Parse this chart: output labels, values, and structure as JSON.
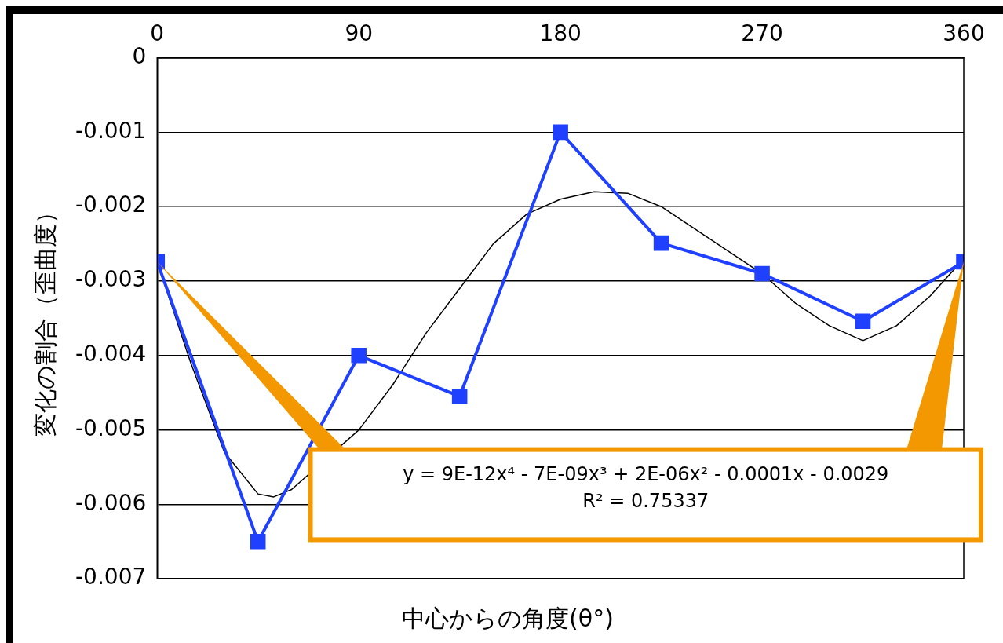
{
  "chart_data": {
    "type": "line",
    "xlabel": "中心からの角度(θ°)",
    "ylabel": "変化の割合（歪曲度）",
    "x": [
      0,
      45,
      90,
      135,
      180,
      225,
      270,
      315,
      360
    ],
    "xlim": [
      0,
      360
    ],
    "xticks": [
      0,
      90,
      180,
      270,
      360
    ],
    "ylim": [
      -0.007,
      0
    ],
    "yticks": [
      -0.007,
      -0.006,
      -0.005,
      -0.004,
      -0.003,
      -0.002,
      -0.001,
      0
    ],
    "grid": "y",
    "legend": false,
    "marker": "square",
    "line_style": "solid",
    "series": [
      {
        "color": "#2040ff",
        "values": [
          -0.00274,
          -0.0065,
          -0.004,
          -0.00455,
          -0.001,
          -0.00249,
          -0.0029,
          -0.00354,
          -0.00274
        ]
      },
      {
        "type": "line",
        "color": "#000000",
        "marker": "none",
        "x": [
          0,
          15,
          30,
          45,
          52,
          60,
          75,
          90,
          105,
          120,
          135,
          150,
          165,
          180,
          195,
          210,
          225,
          240,
          255,
          270,
          285,
          300,
          315,
          330,
          345,
          360
        ],
        "values": [
          -0.00274,
          -0.0041,
          -0.0053,
          -0.00586,
          -0.0059,
          -0.0058,
          null,
          -0.005,
          -0.0044,
          -0.0037,
          -0.0031,
          -0.0025,
          -0.0021,
          -0.0019,
          -0.0018,
          -0.00182,
          -0.002,
          -0.0023,
          -0.0026,
          -0.0029,
          -0.0033,
          -0.0036,
          -0.0038,
          -0.0036,
          -0.0032,
          -0.0027
        ]
      }
    ],
    "annotations": [
      "y = 9E-12x⁴ - 7E-09x³ + 2E-06x² - 0.0001x - 0.0029",
      "R² = 0.75337"
    ]
  }
}
